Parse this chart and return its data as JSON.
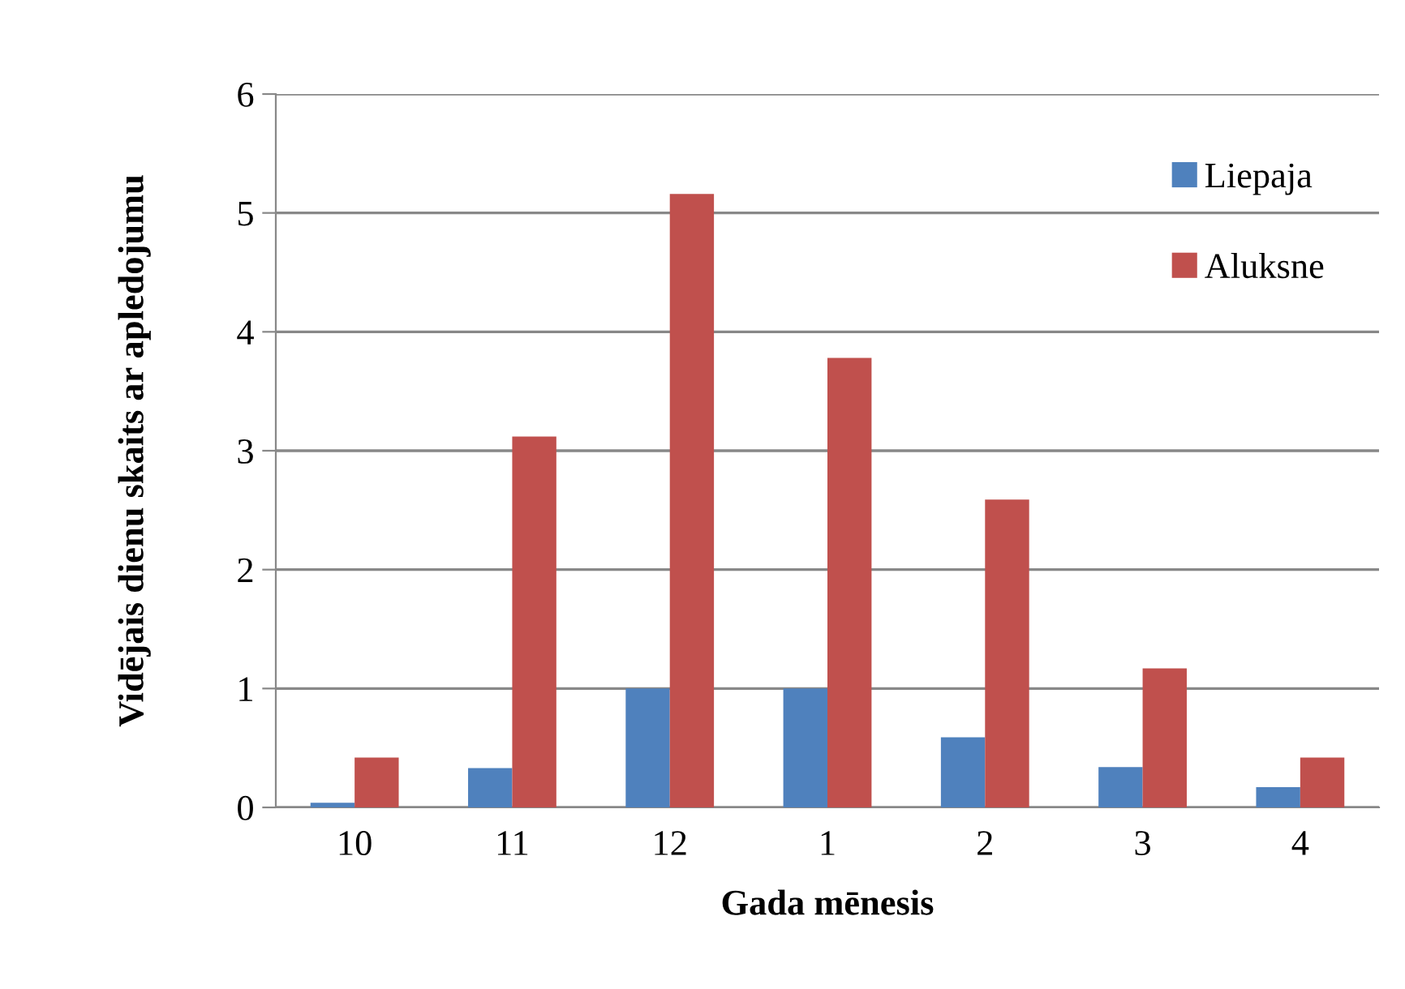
{
  "chart_data": {
    "type": "bar",
    "xlabel": "Gada mēnesis",
    "ylabel": "Vidējais dienu skaits ar apledojumu",
    "categories": [
      "10",
      "11",
      "12",
      "1",
      "2",
      "3",
      "4"
    ],
    "series": [
      {
        "name": "Liepaja",
        "color": "#4f81bd",
        "values": [
          0.04,
          0.33,
          1.0,
          1.0,
          0.59,
          0.34,
          0.17
        ]
      },
      {
        "name": "Aluksne",
        "color": "#c0504d",
        "values": [
          0.42,
          3.12,
          5.16,
          3.78,
          2.59,
          1.17,
          0.42
        ]
      }
    ],
    "ylim": [
      0,
      6
    ],
    "yticks": [
      0,
      1,
      2,
      3,
      4,
      5,
      6
    ],
    "grid": "y",
    "legend": "top right"
  }
}
